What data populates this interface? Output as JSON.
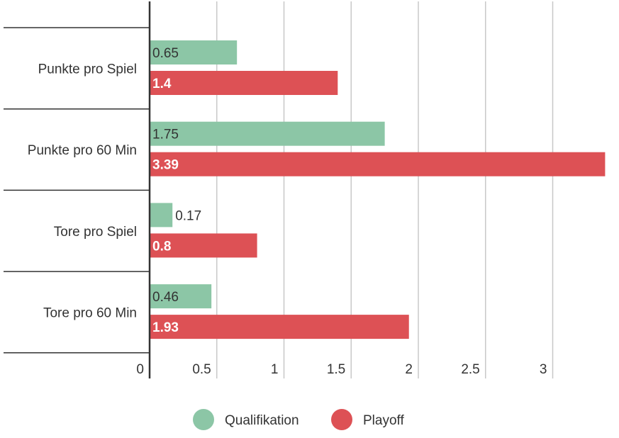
{
  "chart_data": {
    "type": "bar",
    "orientation": "horizontal",
    "categories": [
      "Punkte pro Spiel",
      "Punkte pro 60 Min",
      "Tore pro Spiel",
      "Tore pro 60 Min"
    ],
    "series": [
      {
        "name": "Qualifikation",
        "values": [
          0.65,
          1.75,
          0.17,
          0.46
        ],
        "color": "#8cc6a6",
        "value_labels": [
          "0.65",
          "1.75",
          "0.17",
          "0.46"
        ]
      },
      {
        "name": "Playoff",
        "values": [
          1.4,
          3.39,
          0.8,
          1.93
        ],
        "color": "#dd5155",
        "value_labels": [
          "1.4",
          "3.39",
          "0.8",
          "1.93"
        ]
      }
    ],
    "x_ticks": [
      0,
      0.5,
      1,
      1.5,
      2,
      2.5,
      3
    ],
    "x_tick_labels": [
      "0",
      "0.5",
      "1",
      "1.5",
      "2",
      "2.5",
      "3"
    ],
    "xlim": [
      0,
      3.5
    ],
    "grid": true,
    "legend_position": "bottom"
  }
}
